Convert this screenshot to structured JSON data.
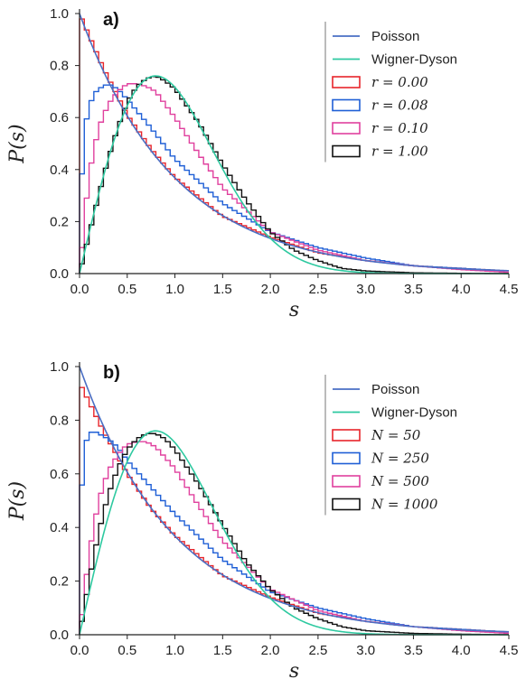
{
  "chart_data": [
    {
      "type": "line",
      "panel_label": "a)",
      "xlabel": "s",
      "ylabel": "P(s)",
      "xlim": [
        0,
        4.5
      ],
      "ylim": [
        0,
        1.0
      ],
      "xticks": [
        "0.0",
        "0.5",
        "1.0",
        "1.5",
        "2.0",
        "2.5",
        "3.0",
        "3.5",
        "4.0",
        "4.5"
      ],
      "yticks": [
        "0.0",
        "0.2",
        "0.4",
        "0.6",
        "0.8",
        "1.0"
      ],
      "grid": false,
      "legend_position": "top-right",
      "series": [
        {
          "name": "Poisson",
          "kind": "curve",
          "color": "#4a6fc4",
          "formula": "exp(-s)"
        },
        {
          "name": "Wigner-Dyson",
          "kind": "curve",
          "color": "#2ec9a0",
          "formula": "(pi/2) s exp(-pi s^2/4)"
        },
        {
          "name": "r = 0.00",
          "kind": "histogram",
          "color": "#e8252b",
          "bin_width": 0.05,
          "x": [
            0,
            0.25,
            0.5,
            0.75,
            1.0,
            1.5,
            2.0,
            2.5,
            3.0,
            3.5,
            4.0,
            4.5
          ],
          "y": [
            1.0,
            0.79,
            0.61,
            0.48,
            0.37,
            0.22,
            0.14,
            0.08,
            0.05,
            0.03,
            0.02,
            0.01
          ]
        },
        {
          "name": "r = 0.08",
          "kind": "histogram",
          "color": "#1f5fd6",
          "bin_width": 0.05,
          "x": [
            0,
            0.02,
            0.05,
            0.1,
            0.15,
            0.2,
            0.3,
            0.4,
            0.5,
            0.75,
            1.0,
            1.5,
            2.0,
            2.5,
            3.0,
            3.5,
            4.0,
            4.5
          ],
          "y": [
            0.0,
            0.35,
            0.55,
            0.64,
            0.69,
            0.71,
            0.73,
            0.71,
            0.67,
            0.56,
            0.44,
            0.27,
            0.16,
            0.1,
            0.06,
            0.03,
            0.02,
            0.01
          ]
        },
        {
          "name": "r = 0.10",
          "kind": "histogram",
          "color": "#e0409e",
          "bin_width": 0.05,
          "x": [
            0,
            0.05,
            0.1,
            0.2,
            0.3,
            0.4,
            0.5,
            0.6,
            0.7,
            0.8,
            1.0,
            1.25,
            1.5,
            2.0,
            2.5,
            3.0,
            3.5,
            4.0,
            4.5
          ],
          "y": [
            0.0,
            0.2,
            0.38,
            0.56,
            0.65,
            0.7,
            0.73,
            0.73,
            0.72,
            0.7,
            0.6,
            0.46,
            0.33,
            0.16,
            0.09,
            0.05,
            0.03,
            0.015,
            0.005
          ]
        },
        {
          "name": "r = 1.00",
          "kind": "histogram",
          "color": "#111111",
          "bin_width": 0.05,
          "x": [
            0,
            0.1,
            0.2,
            0.3,
            0.4,
            0.5,
            0.6,
            0.7,
            0.8,
            0.9,
            1.0,
            1.25,
            1.5,
            1.75,
            2.0,
            2.25,
            2.5,
            2.75,
            3.0,
            3.5,
            4.0,
            4.5
          ],
          "y": [
            0.0,
            0.15,
            0.3,
            0.44,
            0.56,
            0.66,
            0.72,
            0.75,
            0.76,
            0.74,
            0.71,
            0.58,
            0.42,
            0.28,
            0.16,
            0.09,
            0.05,
            0.02,
            0.01,
            0.003,
            0.001,
            0.0
          ]
        }
      ]
    },
    {
      "type": "line",
      "panel_label": "b)",
      "xlabel": "s",
      "ylabel": "P(s)",
      "xlim": [
        0,
        4.5
      ],
      "ylim": [
        0,
        1.0
      ],
      "xticks": [
        "0.0",
        "0.5",
        "1.0",
        "1.5",
        "2.0",
        "2.5",
        "3.0",
        "3.5",
        "4.0",
        "4.5"
      ],
      "yticks": [
        "0.0",
        "0.2",
        "0.4",
        "0.6",
        "0.8",
        "1.0"
      ],
      "grid": false,
      "legend_position": "top-right",
      "series": [
        {
          "name": "Poisson",
          "kind": "curve",
          "color": "#4a6fc4",
          "formula": "exp(-s)"
        },
        {
          "name": "Wigner-Dyson",
          "kind": "curve",
          "color": "#2ec9a0",
          "formula": "(pi/2) s exp(-pi s^2/4)"
        },
        {
          "name": "N = 50",
          "kind": "histogram",
          "color": "#e8252b",
          "bin_width": 0.05,
          "x": [
            0,
            0.25,
            0.5,
            0.75,
            1.0,
            1.5,
            2.0,
            2.5,
            3.0,
            3.5,
            4.0,
            4.5
          ],
          "y": [
            0.94,
            0.76,
            0.6,
            0.47,
            0.37,
            0.22,
            0.14,
            0.08,
            0.05,
            0.03,
            0.02,
            0.01
          ]
        },
        {
          "name": "N = 250",
          "kind": "histogram",
          "color": "#1f5fd6",
          "bin_width": 0.05,
          "x": [
            0,
            0.02,
            0.05,
            0.1,
            0.15,
            0.2,
            0.3,
            0.4,
            0.5,
            0.75,
            1.0,
            1.5,
            2.0,
            2.5,
            3.0,
            3.5,
            4.0,
            4.5
          ],
          "y": [
            0.0,
            0.53,
            0.7,
            0.75,
            0.76,
            0.75,
            0.73,
            0.7,
            0.65,
            0.55,
            0.45,
            0.28,
            0.16,
            0.1,
            0.06,
            0.03,
            0.02,
            0.01
          ]
        },
        {
          "name": "N = 500",
          "kind": "histogram",
          "color": "#e0409e",
          "bin_width": 0.05,
          "x": [
            0,
            0.05,
            0.1,
            0.2,
            0.3,
            0.4,
            0.5,
            0.6,
            0.7,
            0.8,
            1.0,
            1.25,
            1.5,
            2.0,
            2.5,
            3.0,
            3.5,
            4.0,
            4.5
          ],
          "y": [
            0.0,
            0.15,
            0.3,
            0.5,
            0.61,
            0.67,
            0.71,
            0.72,
            0.72,
            0.7,
            0.62,
            0.48,
            0.35,
            0.17,
            0.09,
            0.05,
            0.03,
            0.015,
            0.005
          ]
        },
        {
          "name": "N = 1000",
          "kind": "histogram",
          "color": "#111111",
          "bin_width": 0.05,
          "x": [
            0,
            0.1,
            0.2,
            0.3,
            0.4,
            0.5,
            0.6,
            0.7,
            0.8,
            0.9,
            1.0,
            1.25,
            1.5,
            1.75,
            2.0,
            2.25,
            2.5,
            2.75,
            3.0,
            3.5,
            4.0,
            4.5
          ],
          "y": [
            0.0,
            0.2,
            0.38,
            0.52,
            0.62,
            0.69,
            0.73,
            0.75,
            0.75,
            0.73,
            0.69,
            0.56,
            0.41,
            0.27,
            0.17,
            0.1,
            0.06,
            0.03,
            0.015,
            0.005,
            0.002,
            0.0
          ]
        }
      ]
    }
  ]
}
